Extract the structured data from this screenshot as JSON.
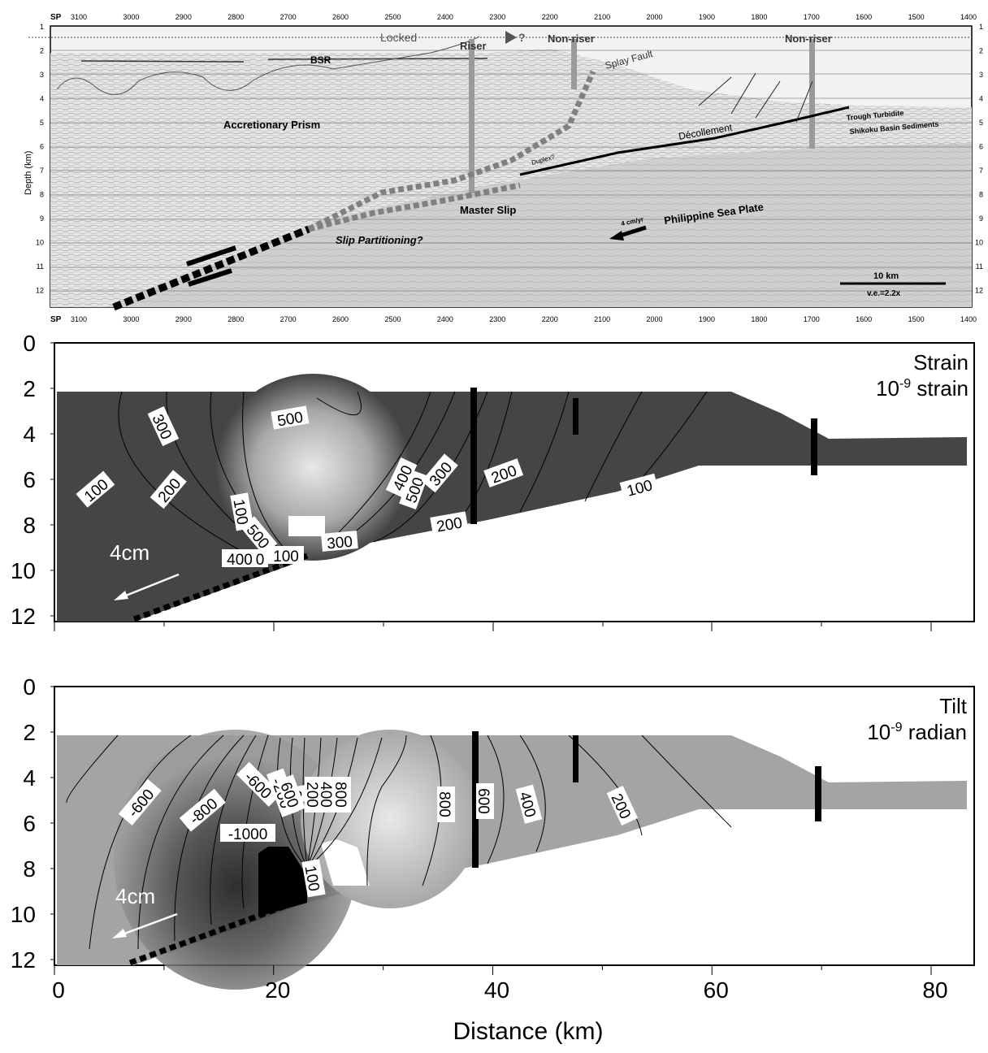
{
  "seismic": {
    "sp_prefix": "SP",
    "sp_ticks": [
      "3100",
      "3000",
      "2900",
      "2800",
      "2700",
      "2600",
      "2500",
      "2400",
      "2300",
      "2200",
      "2100",
      "2000",
      "1900",
      "1800",
      "1700",
      "1600",
      "1500",
      "1400"
    ],
    "depth_ticks": [
      "1",
      "2",
      "3",
      "4",
      "5",
      "6",
      "7",
      "8",
      "9",
      "10",
      "11",
      "12"
    ],
    "ylabel": "Depth (km)",
    "labels": {
      "locked": "Locked",
      "question": "?",
      "riser": "Riser",
      "nonriser1": "Non-riser",
      "nonriser2": "Non-riser",
      "bsr": "BSR",
      "splay_fault": "Splay Fault",
      "accretionary_prism": "Accretionary Prism",
      "decollement": "Décollement",
      "trough_turbidite": "Trough Turbidite",
      "shikoku": "Shikoku Basin Sediments",
      "duplex": "Duplex?",
      "master_slip": "Master Slip",
      "philippine": "Philippine Sea Plate",
      "rate": "4 cm/yr",
      "slip_partitioning": "Slip Partitioning?",
      "scale": "10 km",
      "ve": "v.e.=2.2x"
    }
  },
  "strain": {
    "title_line1": "Strain",
    "title_base": "10",
    "title_exp": "-9",
    "title_unit": " strain",
    "y_ticks": [
      "0",
      "2",
      "4",
      "6",
      "8",
      "10",
      "12"
    ],
    "arrow_label": "4cm",
    "contour_labels": [
      "300",
      "500",
      "100",
      "200",
      "500",
      "400",
      "300",
      "200",
      "100",
      "500",
      "400",
      "0",
      "100",
      "300",
      "200",
      "100"
    ]
  },
  "tilt": {
    "title_line1": "Tilt",
    "title_base": "10",
    "title_exp": "-9",
    "title_unit": " radian",
    "y_ticks": [
      "0",
      "2",
      "4",
      "6",
      "8",
      "10",
      "12"
    ],
    "x_ticks": [
      "0",
      "20",
      "40",
      "60",
      "80"
    ],
    "xlabel": "Distance (km)",
    "arrow_label": "4cm",
    "contour_labels": [
      "-600",
      "-800",
      "-1000",
      "-600",
      "-200",
      "0",
      "200",
      "400",
      "600",
      "800",
      "800",
      "600",
      "400",
      "200",
      "100"
    ]
  }
}
